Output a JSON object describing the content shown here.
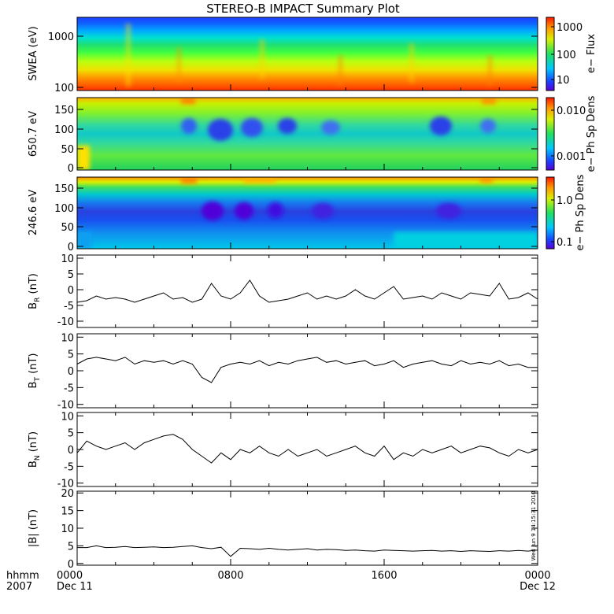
{
  "chart_data": {
    "type": "heatmap",
    "title": "STEREO-B IMPACT Summary Plot",
    "x_axis": {
      "ticks": [
        "0000",
        "0800",
        "1600",
        "0000"
      ],
      "tick_dates": [
        "Dec 11",
        "",
        "",
        "Dec 12"
      ],
      "row_label_time": "hhmm",
      "row_label_year": "2007",
      "range_hours": [
        0,
        24
      ]
    },
    "timestamp": "Wed Jun 9 14:15:31 2010",
    "panels": [
      {
        "type": "heatmap",
        "ylabel": "SWEA (eV)",
        "yscale": "log",
        "ylim": [
          90,
          1800
        ],
        "y_ticks": [
          "1000",
          "100"
        ],
        "colorbar": {
          "label": "e− Flux",
          "scale": "log",
          "ticks": [
            "1000",
            "100",
            "10"
          ]
        }
      },
      {
        "type": "heatmap",
        "ylabel": "650.7 eV",
        "ylim": [
          -5,
          180
        ],
        "y_ticks": [
          "150",
          "100",
          "50",
          "0"
        ],
        "colorbar": {
          "label": "e− Ph Sp Dens",
          "scale": "log",
          "ticks": [
            "0.010",
            "0.001"
          ]
        }
      },
      {
        "type": "heatmap",
        "ylabel": "246.6 eV",
        "ylim": [
          -5,
          180
        ],
        "y_ticks": [
          "150",
          "100",
          "50",
          "0"
        ],
        "colorbar": {
          "label": "e− Ph Sp Dens",
          "scale": "log",
          "ticks": [
            "1.0",
            "0.1"
          ]
        }
      },
      {
        "type": "line",
        "ylabel_main": "B",
        "ylabel_sub": "R",
        "ylabel_unit": " (nT)",
        "ylim": [
          -12,
          11
        ],
        "y_ticks": [
          "10",
          "5",
          "0",
          "-5",
          "-10"
        ],
        "x_hours": [
          0,
          0.5,
          1,
          1.5,
          2,
          2.5,
          3,
          3.5,
          4,
          4.5,
          5,
          5.5,
          6,
          6.5,
          7,
          7.5,
          8,
          8.5,
          9,
          9.5,
          10,
          10.5,
          11,
          11.5,
          12,
          12.5,
          13,
          13.5,
          14,
          14.5,
          15,
          15.5,
          16,
          16.5,
          17,
          17.5,
          18,
          18.5,
          19,
          19.5,
          20,
          20.5,
          21,
          21.5,
          22,
          22.5,
          23,
          23.5,
          24
        ],
        "values": [
          -4,
          -3.5,
          -2,
          -3,
          -2.5,
          -3,
          -4,
          -3,
          -2,
          -1,
          -3,
          -2.5,
          -4,
          -3,
          2,
          -2,
          -3,
          -1,
          3,
          -2,
          -4,
          -3.5,
          -3,
          -2,
          -1,
          -3,
          -2,
          -3,
          -2,
          0,
          -2,
          -3,
          -1,
          1,
          -3,
          -2.5,
          -2,
          -3,
          -1,
          -2,
          -3,
          -1,
          -1.5,
          -2,
          2,
          -3,
          -2.5,
          -1,
          -3
        ],
        "color": "#000000"
      },
      {
        "type": "line",
        "ylabel_main": "B",
        "ylabel_sub": "T",
        "ylabel_unit": " (nT)",
        "ylim": [
          -11,
          11
        ],
        "y_ticks": [
          "10",
          "5",
          "0",
          "-5",
          "-10"
        ],
        "x_hours": [
          0,
          0.5,
          1,
          1.5,
          2,
          2.5,
          3,
          3.5,
          4,
          4.5,
          5,
          5.5,
          6,
          6.5,
          7,
          7.5,
          8,
          8.5,
          9,
          9.5,
          10,
          10.5,
          11,
          11.5,
          12,
          12.5,
          13,
          13.5,
          14,
          14.5,
          15,
          15.5,
          16,
          16.5,
          17,
          17.5,
          18,
          18.5,
          19,
          19.5,
          20,
          20.5,
          21,
          21.5,
          22,
          22.5,
          23,
          23.5,
          24
        ],
        "values": [
          2,
          3.5,
          4,
          3.5,
          3,
          4,
          2,
          3,
          2.5,
          3,
          2,
          3,
          2,
          -2,
          -3.5,
          1,
          2,
          2.5,
          2,
          3,
          1.5,
          2.5,
          2,
          3,
          3.5,
          4,
          2.5,
          3,
          2,
          2.5,
          3,
          1.5,
          2,
          3,
          1,
          2,
          2.5,
          3,
          2,
          1.5,
          3,
          2,
          2.5,
          2,
          3,
          1.5,
          2,
          1,
          1
        ],
        "color": "#000000"
      },
      {
        "type": "line",
        "ylabel_main": "B",
        "ylabel_sub": "N",
        "ylabel_unit": " (nT)",
        "ylim": [
          -11,
          11
        ],
        "y_ticks": [
          "10",
          "5",
          "0",
          "-5",
          "-10"
        ],
        "x_hours": [
          0,
          0.5,
          1,
          1.5,
          2,
          2.5,
          3,
          3.5,
          4,
          4.5,
          5,
          5.5,
          6,
          6.5,
          7,
          7.5,
          8,
          8.5,
          9,
          9.5,
          10,
          10.5,
          11,
          11.5,
          12,
          12.5,
          13,
          13.5,
          14,
          14.5,
          15,
          15.5,
          16,
          16.5,
          17,
          17.5,
          18,
          18.5,
          19,
          19.5,
          20,
          20.5,
          21,
          21.5,
          22,
          22.5,
          23,
          23.5,
          24
        ],
        "values": [
          -1,
          2.5,
          1,
          0,
          1,
          2,
          0,
          2,
          3,
          4,
          4.5,
          3,
          0,
          -2,
          -4,
          -1,
          -3,
          0,
          -1,
          1,
          -1,
          -2,
          0,
          -2,
          -1,
          0,
          -2,
          -1,
          0,
          1,
          -1,
          -2,
          1,
          -3,
          -1,
          -2,
          0,
          -1,
          0,
          1,
          -1,
          0,
          1,
          0.5,
          -1,
          -2,
          0,
          -1,
          0
        ],
        "color": "#000000"
      },
      {
        "type": "line",
        "ylabel": "|B| (nT)",
        "ylim": [
          -0.5,
          20.5
        ],
        "y_ticks": [
          "20",
          "15",
          "10",
          "5",
          "0"
        ],
        "x_hours": [
          0,
          0.5,
          1,
          1.5,
          2,
          2.5,
          3,
          3.5,
          4,
          4.5,
          5,
          5.5,
          6,
          6.5,
          7,
          7.5,
          8,
          8.5,
          9,
          9.5,
          10,
          10.5,
          11,
          11.5,
          12,
          12.5,
          13,
          13.5,
          14,
          14.5,
          15,
          15.5,
          16,
          16.5,
          17,
          17.5,
          18,
          18.5,
          19,
          19.5,
          20,
          20.5,
          21,
          21.5,
          22,
          22.5,
          23,
          23.5,
          24
        ],
        "values": [
          4.5,
          4.5,
          5,
          4.5,
          4.6,
          4.8,
          4.5,
          4.6,
          4.7,
          4.5,
          4.6,
          4.8,
          5,
          4.5,
          4.2,
          4.6,
          2,
          4.3,
          4.2,
          4,
          4.3,
          4,
          3.8,
          4,
          4.2,
          3.8,
          4,
          3.9,
          3.7,
          3.8,
          3.6,
          3.5,
          3.8,
          3.7,
          3.6,
          3.5,
          3.6,
          3.7,
          3.5,
          3.6,
          3.4,
          3.6,
          3.5,
          3.4,
          3.6,
          3.5,
          3.7,
          3.5,
          3.8
        ],
        "color": "#000000"
      }
    ]
  }
}
